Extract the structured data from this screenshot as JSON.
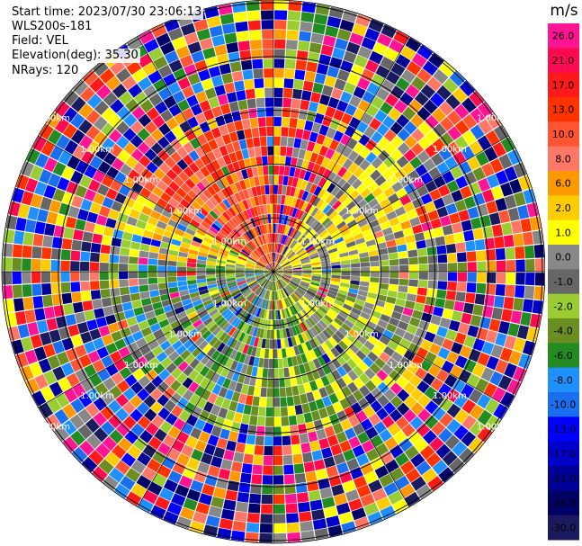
{
  "header": {
    "start_time": "Start time: 2023/07/30 23:06:13",
    "instrument": "WLS200s-181",
    "field": "Field: VEL",
    "elevation": "Elevation(deg): 35.30",
    "nrays": "NRays: 120"
  },
  "chart_data": {
    "type": "heatmap",
    "subtype": "ppi-radar",
    "field": "VEL",
    "unit_label": "m/s",
    "range_rings_km": [
      1,
      2,
      3,
      4,
      5
    ],
    "ring_label_text": "1.00km",
    "nrays": 120,
    "colorbar": {
      "unit": "m/s",
      "tick_labels": [
        "26.0",
        "21.0",
        "17.0",
        "13.0",
        "10.0",
        "8.0",
        "6.0",
        "2.0",
        "1.0",
        "0.0",
        "-1.0",
        "-2.0",
        "-4.0",
        "-6.0",
        "-8.0",
        "-10.0",
        "-13.0",
        "-17.0",
        "-21.0",
        "-26.0",
        "-30.0"
      ],
      "colors": [
        "#ff1493",
        "#ff0a50",
        "#ff1a1a",
        "#ff3300",
        "#ff5533",
        "#ff7766",
        "#ff9900",
        "#ffcc00",
        "#ffff00",
        "#888888",
        "#666666",
        "#9acd32",
        "#6b8e23",
        "#228b22",
        "#1e90ff",
        "#1a6ef0",
        "#0000ff",
        "#0000cc",
        "#000099",
        "#000066",
        "#1a1a5e"
      ]
    }
  }
}
